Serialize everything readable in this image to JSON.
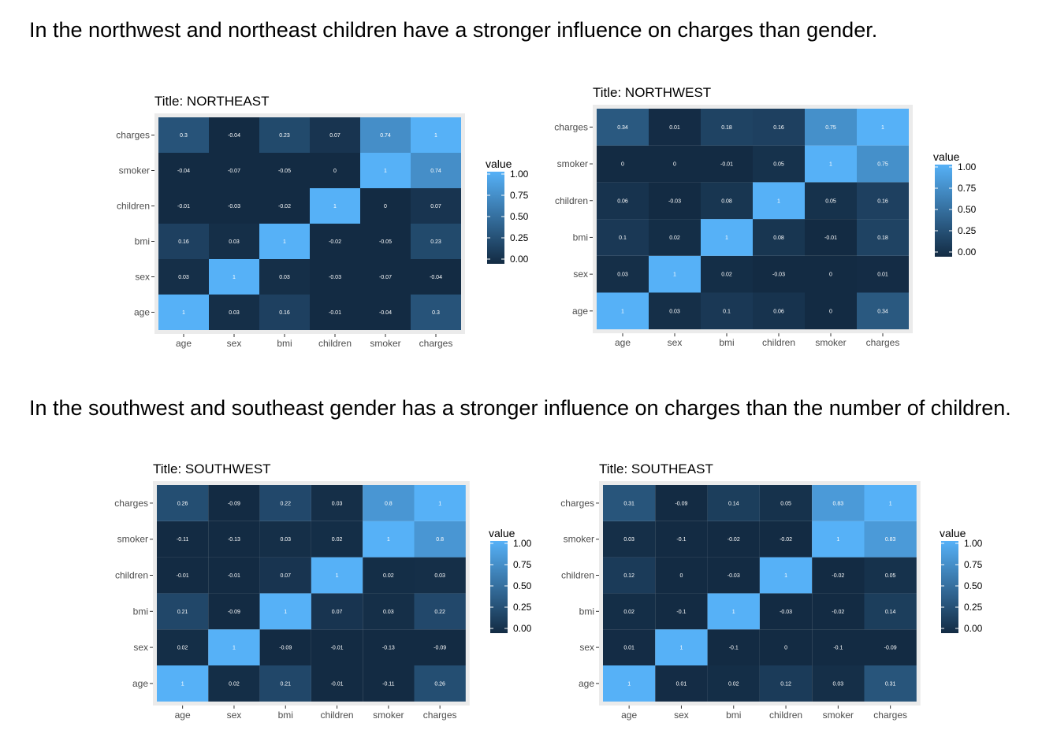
{
  "captions": {
    "top": "In the northwest and northeast children have a stronger influence on charges than gender.",
    "bottom": "In the southwest and southeast gender has a stronger influence on charges than the number of children."
  },
  "colors": {
    "low": "#132b43",
    "high": "#56b1f7",
    "panel_background": "#ebebeb",
    "tick_text": "#4d4d4d"
  },
  "chart_data": [
    {
      "id": "northeast",
      "type": "heatmap",
      "title": "Title: NORTHEAST",
      "x_categories": [
        "age",
        "sex",
        "bmi",
        "children",
        "smoker",
        "charges"
      ],
      "y_categories": [
        "age",
        "sex",
        "bmi",
        "children",
        "smoker",
        "charges"
      ],
      "values": [
        [
          1,
          0.03,
          0.16,
          -0.01,
          -0.04,
          0.3
        ],
        [
          0.03,
          1,
          0.03,
          -0.03,
          -0.07,
          -0.04
        ],
        [
          0.16,
          0.03,
          1,
          -0.02,
          -0.05,
          0.23
        ],
        [
          -0.01,
          -0.03,
          -0.02,
          1,
          0,
          0.07
        ],
        [
          -0.04,
          -0.07,
          -0.05,
          0,
          1,
          0.74
        ],
        [
          0.3,
          -0.04,
          0.23,
          0.07,
          0.74,
          1
        ]
      ],
      "legend": {
        "title": "value",
        "ticks": [
          "1.00",
          "0.75",
          "0.50",
          "0.25",
          "0.00"
        ],
        "range": [
          0,
          1
        ]
      }
    },
    {
      "id": "northwest",
      "type": "heatmap",
      "title": "Title: NORTHWEST",
      "x_categories": [
        "age",
        "sex",
        "bmi",
        "children",
        "smoker",
        "charges"
      ],
      "y_categories": [
        "age",
        "sex",
        "bmi",
        "children",
        "smoker",
        "charges"
      ],
      "values": [
        [
          1,
          0.03,
          0.1,
          0.06,
          0,
          0.34
        ],
        [
          0.03,
          1,
          0.02,
          -0.03,
          0,
          0.01
        ],
        [
          0.1,
          0.02,
          1,
          0.08,
          -0.01,
          0.18
        ],
        [
          0.06,
          -0.03,
          0.08,
          1,
          0.05,
          0.16
        ],
        [
          0,
          0,
          -0.01,
          0.05,
          1,
          0.75
        ],
        [
          0.34,
          0.01,
          0.18,
          0.16,
          0.75,
          1
        ]
      ],
      "legend": {
        "title": "value",
        "ticks": [
          "1.00",
          "0.75",
          "0.50",
          "0.25",
          "0.00"
        ],
        "range": [
          0,
          1
        ]
      }
    },
    {
      "id": "southwest",
      "type": "heatmap",
      "title": "Title: SOUTHWEST",
      "x_categories": [
        "age",
        "sex",
        "bmi",
        "children",
        "smoker",
        "charges"
      ],
      "y_categories": [
        "age",
        "sex",
        "bmi",
        "children",
        "smoker",
        "charges"
      ],
      "values": [
        [
          1,
          0.02,
          0.21,
          -0.01,
          -0.11,
          0.26
        ],
        [
          0.02,
          1,
          -0.09,
          -0.01,
          -0.13,
          -0.09
        ],
        [
          0.21,
          -0.09,
          1,
          0.07,
          0.03,
          0.22
        ],
        [
          -0.01,
          -0.01,
          0.07,
          1,
          0.02,
          0.03
        ],
        [
          -0.11,
          -0.13,
          0.03,
          0.02,
          1,
          0.8
        ],
        [
          0.26,
          -0.09,
          0.22,
          0.03,
          0.8,
          1
        ]
      ],
      "legend": {
        "title": "value",
        "ticks": [
          "1.00",
          "0.75",
          "0.50",
          "0.25",
          "0.00"
        ],
        "range": [
          0,
          1
        ]
      }
    },
    {
      "id": "southeast",
      "type": "heatmap",
      "title": "Title: SOUTHEAST",
      "x_categories": [
        "age",
        "sex",
        "bmi",
        "children",
        "smoker",
        "charges"
      ],
      "y_categories": [
        "age",
        "sex",
        "bmi",
        "children",
        "smoker",
        "charges"
      ],
      "values": [
        [
          1,
          0.01,
          0.02,
          0.12,
          0.03,
          0.31
        ],
        [
          0.01,
          1,
          -0.1,
          0,
          -0.1,
          -0.09
        ],
        [
          0.02,
          -0.1,
          1,
          -0.03,
          -0.02,
          0.14
        ],
        [
          0.12,
          0,
          -0.03,
          1,
          -0.02,
          0.05
        ],
        [
          0.03,
          -0.1,
          -0.02,
          -0.02,
          1,
          0.83
        ],
        [
          0.31,
          -0.09,
          0.14,
          0.05,
          0.83,
          1
        ]
      ],
      "legend": {
        "title": "value",
        "ticks": [
          "1.00",
          "0.75",
          "0.50",
          "0.25",
          "0.00"
        ],
        "range": [
          0,
          1
        ]
      }
    }
  ]
}
